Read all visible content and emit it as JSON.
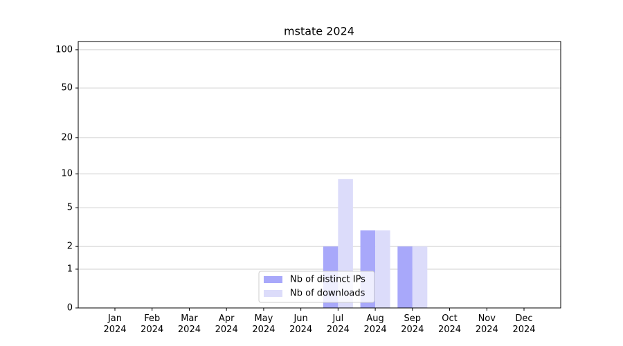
{
  "chart_data": {
    "type": "bar",
    "title": "mstate 2024",
    "categories": [
      "Jan 2024",
      "Feb 2024",
      "Mar 2024",
      "Apr 2024",
      "May 2024",
      "Jun 2024",
      "Jul 2024",
      "Aug 2024",
      "Sep 2024",
      "Oct 2024",
      "Nov 2024",
      "Dec 2024"
    ],
    "series": [
      {
        "name": "Nb of distinct IPs",
        "color": "#a8a8fa",
        "values": [
          0,
          0,
          0,
          0,
          0,
          0,
          2,
          3,
          2,
          0,
          0,
          0
        ]
      },
      {
        "name": "Nb of downloads",
        "color": "#dcdcfa",
        "values": [
          0,
          0,
          0,
          0,
          0,
          0,
          9,
          3,
          2,
          0,
          0,
          0
        ]
      }
    ],
    "yscale": "log1p",
    "ylim": [
      0,
      116
    ],
    "yticks": [
      0,
      1,
      2,
      5,
      10,
      20,
      50,
      100
    ],
    "grid": true,
    "legend": "lower center"
  }
}
